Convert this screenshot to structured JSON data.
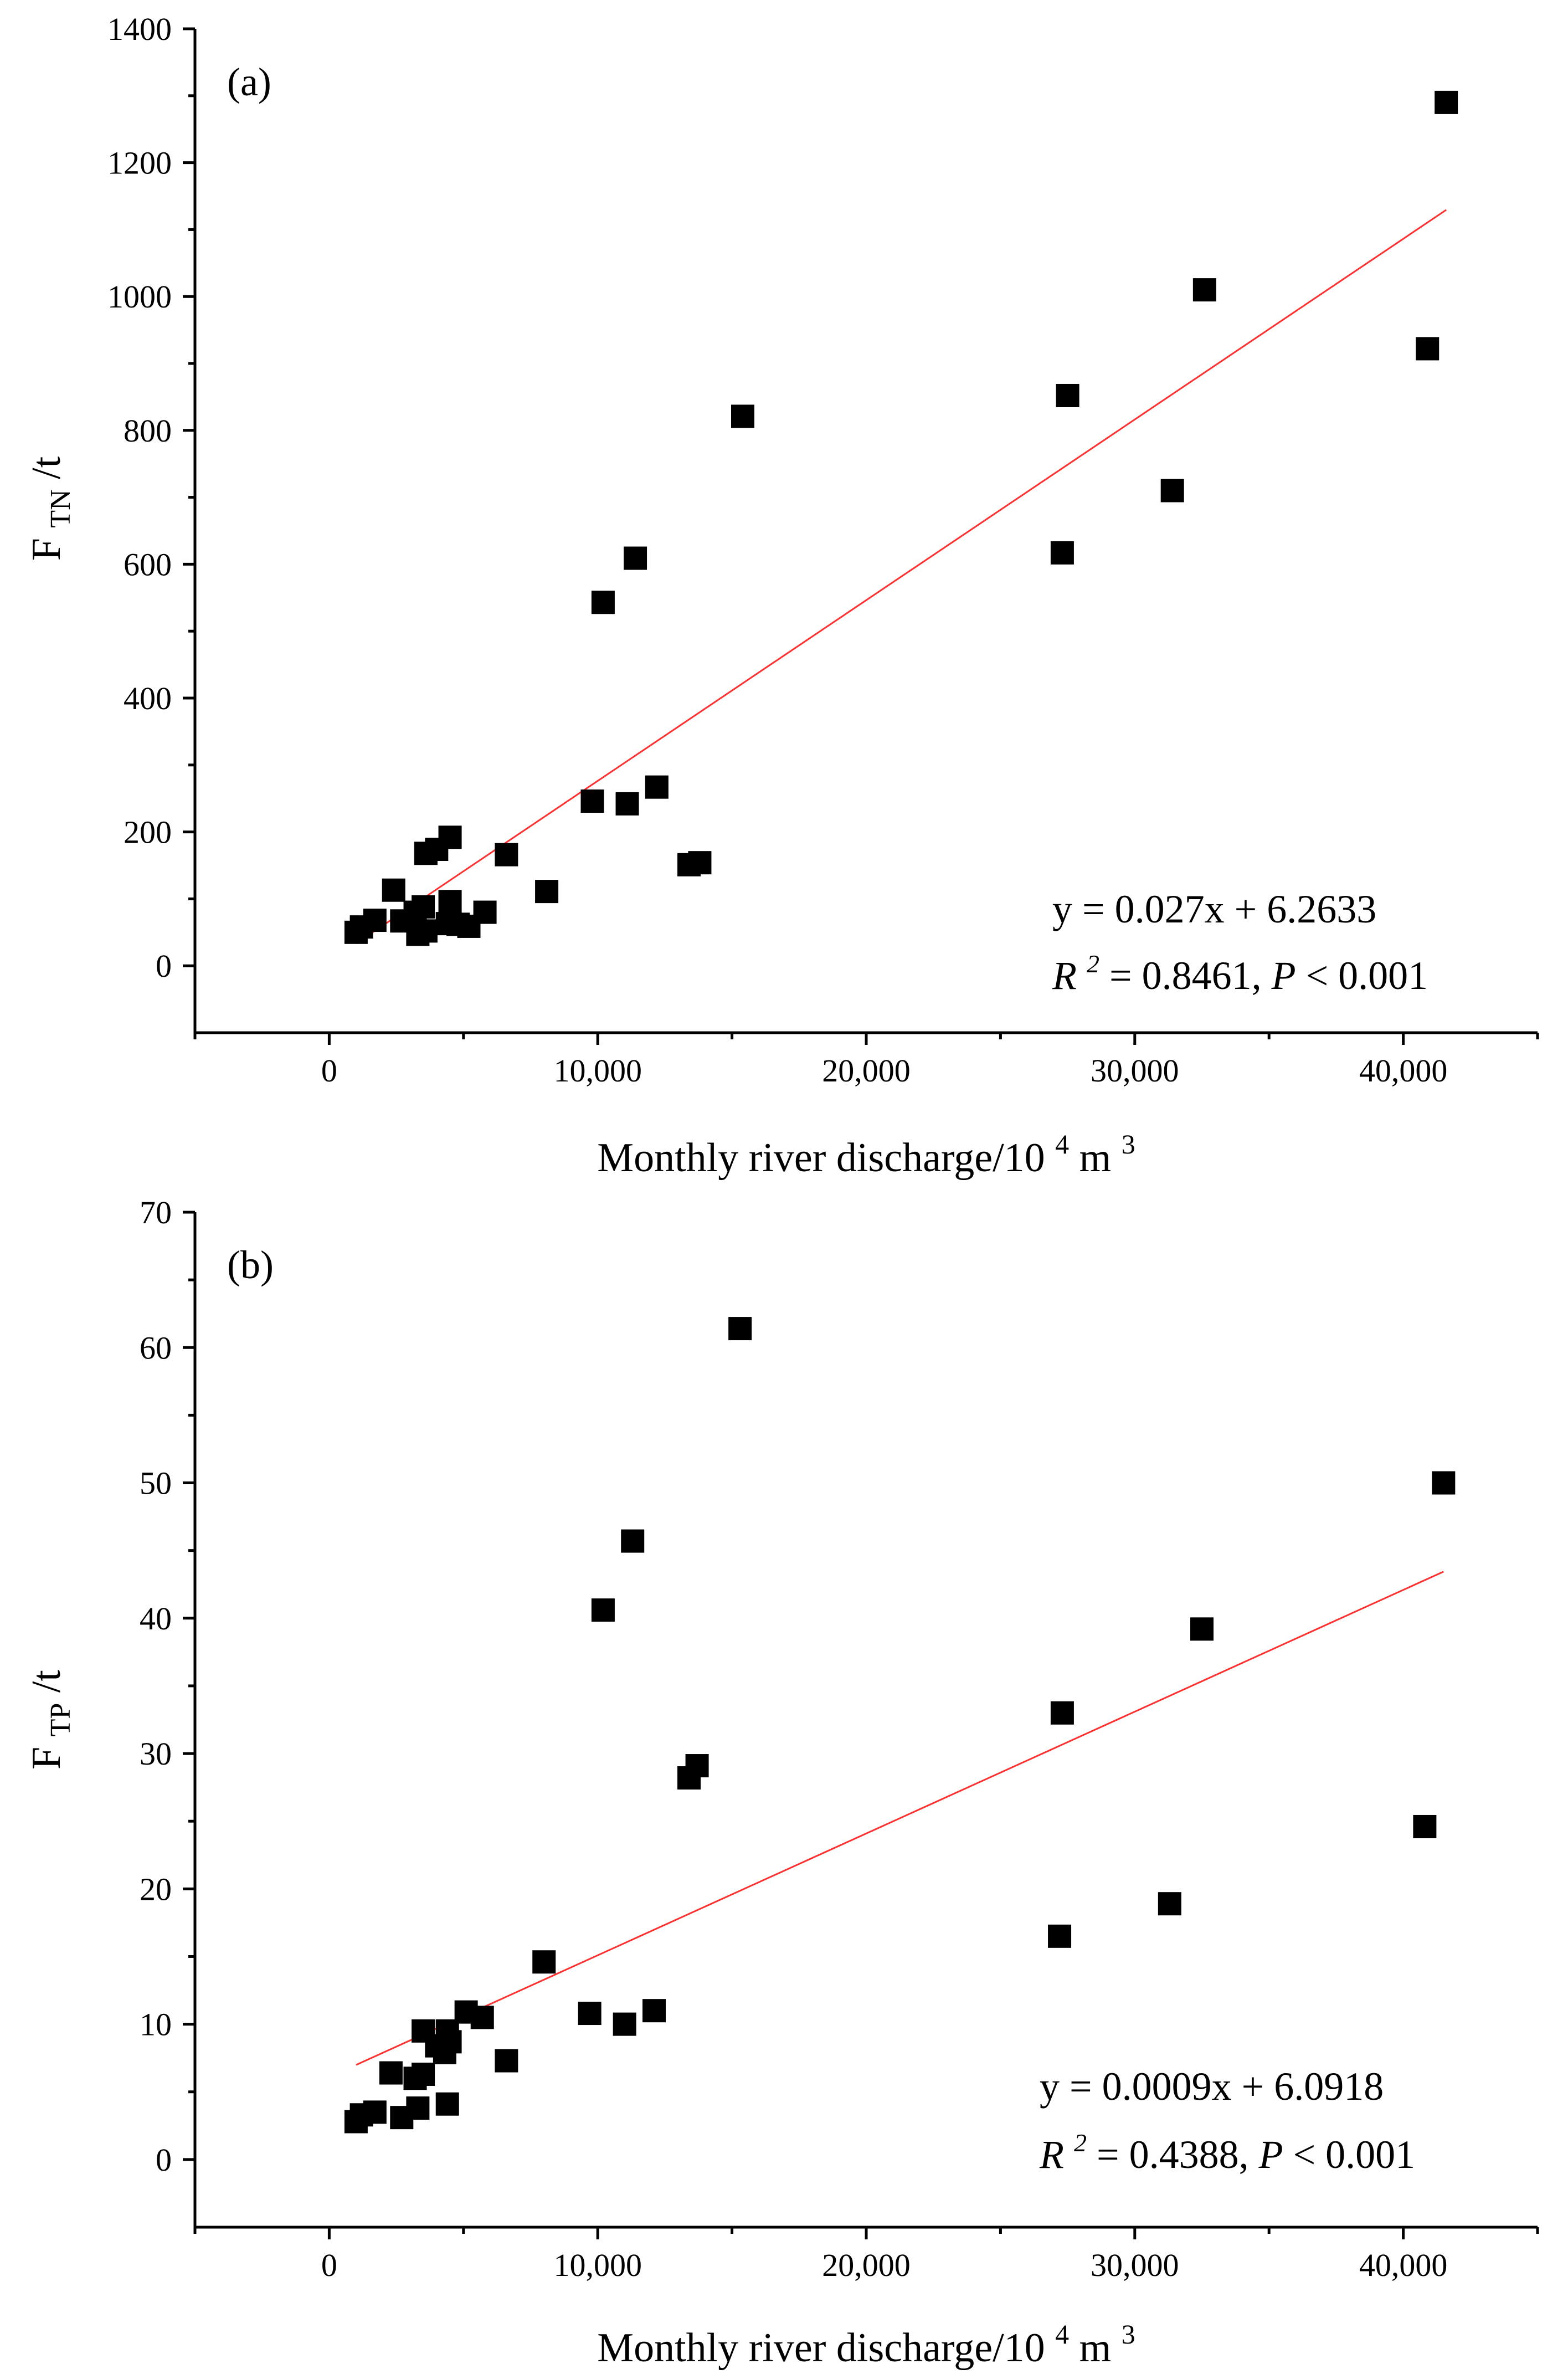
{
  "chart_data": [
    {
      "type": "scatter",
      "panel_label": "(a)",
      "xlabel": "Monthly river discharge/10",
      "xlabel_sup1": "4",
      "xlabel_mid": "m",
      "xlabel_sup2": "3",
      "ylabel_main": "F",
      "ylabel_sub": "TN",
      "ylabel_tail": "/t",
      "xlim": [
        -5000,
        45000
      ],
      "ylim": [
        -100,
        1400
      ],
      "x_ticks": [
        0,
        10000,
        20000,
        30000,
        40000
      ],
      "x_tick_labels": [
        "0",
        "10,000",
        "20,000",
        "30,000",
        "40,000"
      ],
      "y_ticks": [
        0,
        200,
        400,
        600,
        800,
        1000,
        1200,
        1400
      ],
      "y_tick_labels": [
        "0",
        "200",
        "400",
        "600",
        "800",
        "1000",
        "1200",
        "1400"
      ],
      "points": [
        [
          1000,
          50
        ],
        [
          1200,
          58
        ],
        [
          1700,
          68
        ],
        [
          2400,
          113
        ],
        [
          2700,
          67
        ],
        [
          3200,
          80
        ],
        [
          3300,
          47
        ],
        [
          3500,
          88
        ],
        [
          3600,
          52
        ],
        [
          3600,
          168
        ],
        [
          4000,
          174
        ],
        [
          4400,
          63
        ],
        [
          4500,
          96
        ],
        [
          4500,
          192
        ],
        [
          4800,
          62
        ],
        [
          5200,
          59
        ],
        [
          5800,
          80
        ],
        [
          6600,
          166
        ],
        [
          8100,
          111
        ],
        [
          9800,
          246
        ],
        [
          10200,
          543
        ],
        [
          11100,
          242
        ],
        [
          11400,
          609
        ],
        [
          12200,
          267
        ],
        [
          13400,
          151
        ],
        [
          13800,
          154
        ],
        [
          15400,
          821
        ],
        [
          27300,
          617
        ],
        [
          27500,
          852
        ],
        [
          31400,
          710
        ],
        [
          32600,
          1010
        ],
        [
          40900,
          922
        ],
        [
          41600,
          1290
        ]
      ],
      "fit": {
        "slope": 0.027,
        "intercept": 6.2633,
        "x_range": [
          1000,
          41600
        ]
      },
      "equation_line1": "y = 0.027x + 6.2633",
      "r2_label": "R",
      "r2_sup": "2",
      "r2_text": " = 0.8461,",
      "p_label": "P",
      "p_text": " < 0.001"
    },
    {
      "type": "scatter",
      "panel_label": "(b)",
      "xlabel": "Monthly river discharge/10",
      "xlabel_sup1": "4",
      "xlabel_mid": "m",
      "xlabel_sup2": "3",
      "ylabel_main": "F",
      "ylabel_sub": "TP",
      "ylabel_tail": "/t",
      "xlim": [
        -5000,
        45000
      ],
      "ylim": [
        -5,
        70
      ],
      "x_ticks": [
        0,
        10000,
        20000,
        30000,
        40000
      ],
      "x_tick_labels": [
        "0",
        "10,000",
        "20,000",
        "30,000",
        "40,000"
      ],
      "y_ticks": [
        0,
        10,
        20,
        30,
        40,
        50,
        60,
        70
      ],
      "y_tick_labels": [
        "0",
        "10",
        "20",
        "30",
        "40",
        "50",
        "60",
        "70"
      ],
      "points": [
        [
          1000,
          2.8
        ],
        [
          1200,
          3.3
        ],
        [
          1700,
          3.5
        ],
        [
          2300,
          6.4
        ],
        [
          2700,
          3.1
        ],
        [
          3200,
          6.0
        ],
        [
          3300,
          3.8
        ],
        [
          3500,
          9.5
        ],
        [
          3500,
          6.3
        ],
        [
          4000,
          8.4
        ],
        [
          4300,
          7.9
        ],
        [
          4400,
          4.1
        ],
        [
          4400,
          9.5
        ],
        [
          4500,
          8.7
        ],
        [
          5100,
          10.9
        ],
        [
          5700,
          10.5
        ],
        [
          6600,
          7.3
        ],
        [
          8000,
          14.6
        ],
        [
          9700,
          10.8
        ],
        [
          10200,
          40.6
        ],
        [
          11000,
          10.0
        ],
        [
          11300,
          45.7
        ],
        [
          12100,
          11.0
        ],
        [
          13400,
          28.2
        ],
        [
          13700,
          29.1
        ],
        [
          15300,
          61.4
        ],
        [
          27200,
          16.5
        ],
        [
          27300,
          33.0
        ],
        [
          31300,
          18.9
        ],
        [
          32500,
          39.2
        ],
        [
          40800,
          24.6
        ],
        [
          41500,
          50.0
        ]
      ],
      "fit": {
        "slope": 0.0009,
        "intercept": 6.0918,
        "x_range": [
          1000,
          41500
        ]
      },
      "equation_line1": "y = 0.0009x + 6.0918",
      "r2_label": "R",
      "r2_sup": "2",
      "r2_text": " = 0.4388,",
      "p_label": "P",
      "p_text": " < 0.001"
    }
  ]
}
